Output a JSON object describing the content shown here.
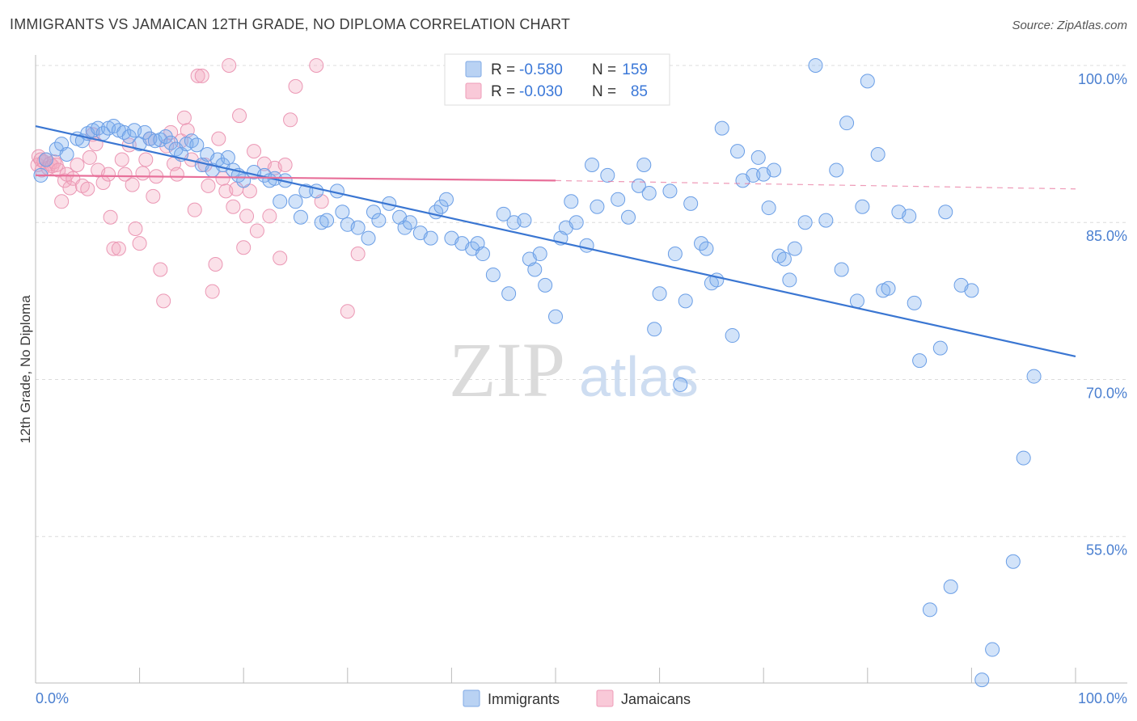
{
  "title": "IMMIGRANTS VS JAMAICAN 12TH GRADE, NO DIPLOMA CORRELATION CHART",
  "source": "Source: ZipAtlas.com",
  "watermark": {
    "zip": "ZIP",
    "atlas": "atlas"
  },
  "colors": {
    "immigrants": "#7fb0ee",
    "immigrants_line": "#3a76d2",
    "jamaicans": "#f4a8c0",
    "jamaicans_line": "#e8709a",
    "axis_text": "#4a7fd0"
  },
  "legend": {
    "rows": [
      {
        "r_label": "R =",
        "r_value": "-0.580",
        "n_label": "N =",
        "n_value": "159"
      },
      {
        "r_label": "R =",
        "r_value": "-0.030",
        "n_label": "N =",
        "n_value": "85"
      }
    ]
  },
  "bottom_legend": {
    "immigrants": "Immigrants",
    "jamaicans": "Jamaicans"
  },
  "chart_data": {
    "type": "scatter",
    "title": "IMMIGRANTS VS JAMAICAN 12TH GRADE, NO DIPLOMA CORRELATION CHART",
    "xlabel": "",
    "ylabel": "12th Grade, No Diploma",
    "xlim": [
      0,
      100
    ],
    "ylim": [
      41,
      101
    ],
    "x_ticks": [
      "0.0%",
      "100.0%"
    ],
    "y_ticks": [
      {
        "value": 100,
        "label": "100.0%"
      },
      {
        "value": 85,
        "label": "85.0%"
      },
      {
        "value": 70,
        "label": "70.0%"
      },
      {
        "value": 55,
        "label": "55.0%"
      }
    ],
    "grid": true,
    "legend_position": "top-center",
    "series": [
      {
        "name": "Immigrants",
        "r": -0.58,
        "n": 159,
        "trend": {
          "x": [
            0,
            100
          ],
          "y": [
            94.2,
            72.2
          ]
        },
        "points": [
          [
            0.5,
            89.5
          ],
          [
            1,
            91
          ],
          [
            2,
            92
          ],
          [
            2.5,
            92.5
          ],
          [
            3,
            91.5
          ],
          [
            4,
            93
          ],
          [
            4.5,
            92.8
          ],
          [
            5,
            93.5
          ],
          [
            5.5,
            93.8
          ],
          [
            6,
            94
          ],
          [
            6.5,
            93.5
          ],
          [
            7,
            94
          ],
          [
            7.5,
            94.2
          ],
          [
            8,
            93.8
          ],
          [
            8.5,
            93.6
          ],
          [
            9,
            93.2
          ],
          [
            9.5,
            93.8
          ],
          [
            10,
            92.5
          ],
          [
            10.5,
            93.6
          ],
          [
            11,
            93
          ],
          [
            11.5,
            92.8
          ],
          [
            12,
            92.9
          ],
          [
            12.5,
            93.2
          ],
          [
            13,
            92.6
          ],
          [
            13.5,
            92
          ],
          [
            14,
            91.5
          ],
          [
            14.5,
            92.5
          ],
          [
            15,
            92.8
          ],
          [
            15.5,
            92.4
          ],
          [
            16,
            90.5
          ],
          [
            16.5,
            91.5
          ],
          [
            17,
            90
          ],
          [
            17.5,
            91
          ],
          [
            18,
            90.5
          ],
          [
            18.5,
            91.2
          ],
          [
            19,
            90
          ],
          [
            19.5,
            89.5
          ],
          [
            20,
            89
          ],
          [
            21,
            89.8
          ],
          [
            22,
            89.5
          ],
          [
            22.5,
            89
          ],
          [
            23,
            89.2
          ],
          [
            23.5,
            87
          ],
          [
            24,
            89
          ],
          [
            25,
            87
          ],
          [
            25.5,
            85.5
          ],
          [
            26,
            88
          ],
          [
            27,
            88
          ],
          [
            27.5,
            85
          ],
          [
            28,
            85.2
          ],
          [
            29,
            88
          ],
          [
            29.5,
            86
          ],
          [
            30,
            84.8
          ],
          [
            31,
            84.5
          ],
          [
            32,
            83.5
          ],
          [
            32.5,
            86
          ],
          [
            33,
            85.2
          ],
          [
            34,
            86.8
          ],
          [
            35,
            85.5
          ],
          [
            35.5,
            84.5
          ],
          [
            36,
            85
          ],
          [
            37,
            84
          ],
          [
            38,
            83.5
          ],
          [
            38.5,
            86
          ],
          [
            39,
            86.5
          ],
          [
            39.5,
            87.2
          ],
          [
            40,
            83.5
          ],
          [
            41,
            83
          ],
          [
            42,
            82.5
          ],
          [
            42.5,
            83
          ],
          [
            43,
            82
          ],
          [
            44,
            80
          ],
          [
            45,
            85.8
          ],
          [
            45.5,
            78.2
          ],
          [
            46,
            85
          ],
          [
            47,
            85.2
          ],
          [
            47.5,
            81.5
          ],
          [
            48,
            80.5
          ],
          [
            48.5,
            82
          ],
          [
            49,
            79
          ],
          [
            50,
            76
          ],
          [
            50.5,
            83.5
          ],
          [
            51,
            84.5
          ],
          [
            51.5,
            87
          ],
          [
            52,
            85
          ],
          [
            53,
            82.8
          ],
          [
            53.5,
            90.5
          ],
          [
            54,
            86.5
          ],
          [
            55,
            89.5
          ],
          [
            56,
            87.2
          ],
          [
            57,
            85.5
          ],
          [
            58,
            88.5
          ],
          [
            58.5,
            90.5
          ],
          [
            59,
            87.8
          ],
          [
            59.5,
            74.8
          ],
          [
            60,
            78.2
          ],
          [
            61,
            88
          ],
          [
            61.5,
            82
          ],
          [
            62,
            69.5
          ],
          [
            62.5,
            77.5
          ],
          [
            63,
            86.8
          ],
          [
            64,
            83
          ],
          [
            64.5,
            82.5
          ],
          [
            65,
            79.2
          ],
          [
            65.5,
            79.5
          ],
          [
            66,
            94
          ],
          [
            67,
            74.2
          ],
          [
            67.5,
            91.8
          ],
          [
            68,
            89
          ],
          [
            69,
            89.5
          ],
          [
            69.5,
            91.2
          ],
          [
            70,
            89.6
          ],
          [
            70.5,
            86.4
          ],
          [
            71,
            90
          ],
          [
            71.5,
            81.8
          ],
          [
            72,
            81.5
          ],
          [
            72.5,
            79.5
          ],
          [
            73,
            82.5
          ],
          [
            74,
            85
          ],
          [
            75,
            100
          ],
          [
            76,
            85.2
          ],
          [
            77,
            90
          ],
          [
            77.5,
            80.5
          ],
          [
            78,
            94.5
          ],
          [
            79,
            77.5
          ],
          [
            79.5,
            86.5
          ],
          [
            80,
            98.5
          ],
          [
            81,
            91.5
          ],
          [
            81.5,
            78.5
          ],
          [
            82,
            78.7
          ],
          [
            83,
            86
          ],
          [
            84,
            85.6
          ],
          [
            84.5,
            77.3
          ],
          [
            85,
            71.8
          ],
          [
            86,
            48
          ],
          [
            87,
            73
          ],
          [
            87.5,
            86
          ],
          [
            88,
            50.2
          ],
          [
            89,
            79
          ],
          [
            90,
            78.5
          ],
          [
            91,
            41.3
          ],
          [
            92,
            44.2
          ],
          [
            94,
            52.6
          ],
          [
            95,
            62.5
          ],
          [
            96,
            70.3
          ]
        ]
      },
      {
        "name": "Jamaicans",
        "r": -0.03,
        "n": 85,
        "trend": {
          "x": [
            0,
            50
          ],
          "y": [
            89.5,
            89.0
          ],
          "dashed_to": {
            "x": 100,
            "y": 88.2
          }
        },
        "points": [
          [
            0.2,
            90.5
          ],
          [
            0.3,
            91.3
          ],
          [
            0.5,
            91
          ],
          [
            0.6,
            90
          ],
          [
            0.8,
            90.8
          ],
          [
            1,
            91
          ],
          [
            1.2,
            90.2
          ],
          [
            1.4,
            90.6
          ],
          [
            1.6,
            90.4
          ],
          [
            1.8,
            90.8
          ],
          [
            2,
            90.5
          ],
          [
            2.2,
            90
          ],
          [
            2.5,
            87
          ],
          [
            2.8,
            89
          ],
          [
            3,
            89.6
          ],
          [
            3.3,
            88.3
          ],
          [
            3.6,
            89.2
          ],
          [
            4,
            90.5
          ],
          [
            4.5,
            88.5
          ],
          [
            5,
            88.2
          ],
          [
            5.2,
            91.2
          ],
          [
            5.5,
            93.4
          ],
          [
            5.8,
            92.5
          ],
          [
            6,
            90
          ],
          [
            6.5,
            88.8
          ],
          [
            7,
            89.6
          ],
          [
            7.2,
            85.5
          ],
          [
            7.5,
            82.5
          ],
          [
            8,
            82.5
          ],
          [
            8.3,
            91
          ],
          [
            8.6,
            89.6
          ],
          [
            9,
            92.4
          ],
          [
            9.3,
            88.6
          ],
          [
            9.6,
            84.4
          ],
          [
            10,
            83
          ],
          [
            10.3,
            89.7
          ],
          [
            10.6,
            91
          ],
          [
            11,
            93
          ],
          [
            11.3,
            87.5
          ],
          [
            11.6,
            89.4
          ],
          [
            12,
            80.5
          ],
          [
            12.3,
            77.5
          ],
          [
            12.6,
            92.3
          ],
          [
            13,
            93.6
          ],
          [
            13.3,
            90.6
          ],
          [
            13.6,
            89.6
          ],
          [
            14,
            92.8
          ],
          [
            14.3,
            95
          ],
          [
            14.6,
            93.8
          ],
          [
            15,
            91
          ],
          [
            15.3,
            86.2
          ],
          [
            15.6,
            99
          ],
          [
            16,
            99
          ],
          [
            16.3,
            90.5
          ],
          [
            16.6,
            88.5
          ],
          [
            17,
            78.4
          ],
          [
            17.3,
            81
          ],
          [
            17.6,
            93
          ],
          [
            18,
            89.2
          ],
          [
            18.3,
            88
          ],
          [
            18.6,
            100
          ],
          [
            19,
            86.5
          ],
          [
            19.3,
            88.2
          ],
          [
            19.6,
            95.2
          ],
          [
            20,
            82.6
          ],
          [
            20.3,
            85.6
          ],
          [
            20.6,
            88
          ],
          [
            21,
            91.8
          ],
          [
            21.3,
            84.2
          ],
          [
            22,
            90.6
          ],
          [
            22.5,
            85.6
          ],
          [
            23,
            90.2
          ],
          [
            23.5,
            81.6
          ],
          [
            24,
            90.5
          ],
          [
            24.5,
            94.8
          ],
          [
            25,
            98
          ],
          [
            27,
            100
          ],
          [
            27.5,
            87
          ],
          [
            30,
            76.5
          ],
          [
            31,
            82
          ]
        ]
      }
    ]
  }
}
